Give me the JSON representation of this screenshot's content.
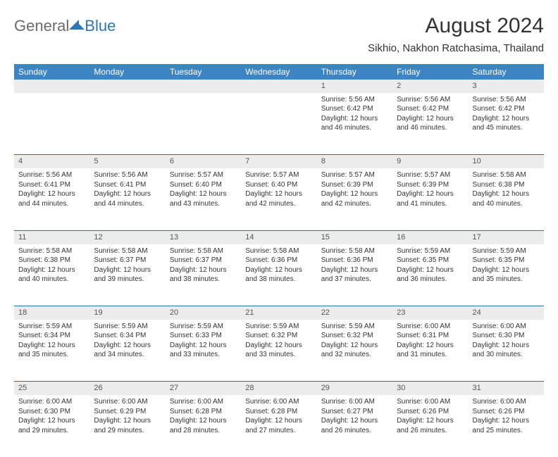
{
  "logo": {
    "general": "General",
    "blue": "Blue"
  },
  "title": "August 2024",
  "location": "Sikhio, Nakhon Ratchasima, Thailand",
  "colors": {
    "header_bg": "#3d84c4",
    "row_divider": "#2d6ea8",
    "daynum_bg": "#ececec",
    "logo_gray": "#6b6b6b",
    "logo_blue": "#2d76b6"
  },
  "day_headers": [
    "Sunday",
    "Monday",
    "Tuesday",
    "Wednesday",
    "Thursday",
    "Friday",
    "Saturday"
  ],
  "weeks": [
    {
      "nums": [
        "",
        "",
        "",
        "",
        "1",
        "2",
        "3"
      ],
      "cells": [
        null,
        null,
        null,
        null,
        {
          "sr": "5:56 AM",
          "ss": "6:42 PM",
          "dl": "12 hours and 46 minutes."
        },
        {
          "sr": "5:56 AM",
          "ss": "6:42 PM",
          "dl": "12 hours and 46 minutes."
        },
        {
          "sr": "5:56 AM",
          "ss": "6:42 PM",
          "dl": "12 hours and 45 minutes."
        }
      ]
    },
    {
      "nums": [
        "4",
        "5",
        "6",
        "7",
        "8",
        "9",
        "10"
      ],
      "cells": [
        {
          "sr": "5:56 AM",
          "ss": "6:41 PM",
          "dl": "12 hours and 44 minutes."
        },
        {
          "sr": "5:56 AM",
          "ss": "6:41 PM",
          "dl": "12 hours and 44 minutes."
        },
        {
          "sr": "5:57 AM",
          "ss": "6:40 PM",
          "dl": "12 hours and 43 minutes."
        },
        {
          "sr": "5:57 AM",
          "ss": "6:40 PM",
          "dl": "12 hours and 42 minutes."
        },
        {
          "sr": "5:57 AM",
          "ss": "6:39 PM",
          "dl": "12 hours and 42 minutes."
        },
        {
          "sr": "5:57 AM",
          "ss": "6:39 PM",
          "dl": "12 hours and 41 minutes."
        },
        {
          "sr": "5:58 AM",
          "ss": "6:38 PM",
          "dl": "12 hours and 40 minutes."
        }
      ]
    },
    {
      "nums": [
        "11",
        "12",
        "13",
        "14",
        "15",
        "16",
        "17"
      ],
      "cells": [
        {
          "sr": "5:58 AM",
          "ss": "6:38 PM",
          "dl": "12 hours and 40 minutes."
        },
        {
          "sr": "5:58 AM",
          "ss": "6:37 PM",
          "dl": "12 hours and 39 minutes."
        },
        {
          "sr": "5:58 AM",
          "ss": "6:37 PM",
          "dl": "12 hours and 38 minutes."
        },
        {
          "sr": "5:58 AM",
          "ss": "6:36 PM",
          "dl": "12 hours and 38 minutes."
        },
        {
          "sr": "5:58 AM",
          "ss": "6:36 PM",
          "dl": "12 hours and 37 minutes."
        },
        {
          "sr": "5:59 AM",
          "ss": "6:35 PM",
          "dl": "12 hours and 36 minutes."
        },
        {
          "sr": "5:59 AM",
          "ss": "6:35 PM",
          "dl": "12 hours and 35 minutes."
        }
      ]
    },
    {
      "nums": [
        "18",
        "19",
        "20",
        "21",
        "22",
        "23",
        "24"
      ],
      "cells": [
        {
          "sr": "5:59 AM",
          "ss": "6:34 PM",
          "dl": "12 hours and 35 minutes."
        },
        {
          "sr": "5:59 AM",
          "ss": "6:34 PM",
          "dl": "12 hours and 34 minutes."
        },
        {
          "sr": "5:59 AM",
          "ss": "6:33 PM",
          "dl": "12 hours and 33 minutes."
        },
        {
          "sr": "5:59 AM",
          "ss": "6:32 PM",
          "dl": "12 hours and 33 minutes."
        },
        {
          "sr": "5:59 AM",
          "ss": "6:32 PM",
          "dl": "12 hours and 32 minutes."
        },
        {
          "sr": "6:00 AM",
          "ss": "6:31 PM",
          "dl": "12 hours and 31 minutes."
        },
        {
          "sr": "6:00 AM",
          "ss": "6:30 PM",
          "dl": "12 hours and 30 minutes."
        }
      ]
    },
    {
      "nums": [
        "25",
        "26",
        "27",
        "28",
        "29",
        "30",
        "31"
      ],
      "cells": [
        {
          "sr": "6:00 AM",
          "ss": "6:30 PM",
          "dl": "12 hours and 29 minutes."
        },
        {
          "sr": "6:00 AM",
          "ss": "6:29 PM",
          "dl": "12 hours and 29 minutes."
        },
        {
          "sr": "6:00 AM",
          "ss": "6:28 PM",
          "dl": "12 hours and 28 minutes."
        },
        {
          "sr": "6:00 AM",
          "ss": "6:28 PM",
          "dl": "12 hours and 27 minutes."
        },
        {
          "sr": "6:00 AM",
          "ss": "6:27 PM",
          "dl": "12 hours and 26 minutes."
        },
        {
          "sr": "6:00 AM",
          "ss": "6:26 PM",
          "dl": "12 hours and 26 minutes."
        },
        {
          "sr": "6:00 AM",
          "ss": "6:26 PM",
          "dl": "12 hours and 25 minutes."
        }
      ]
    }
  ],
  "labels": {
    "sunrise": "Sunrise:",
    "sunset": "Sunset:",
    "daylight": "Daylight:"
  }
}
